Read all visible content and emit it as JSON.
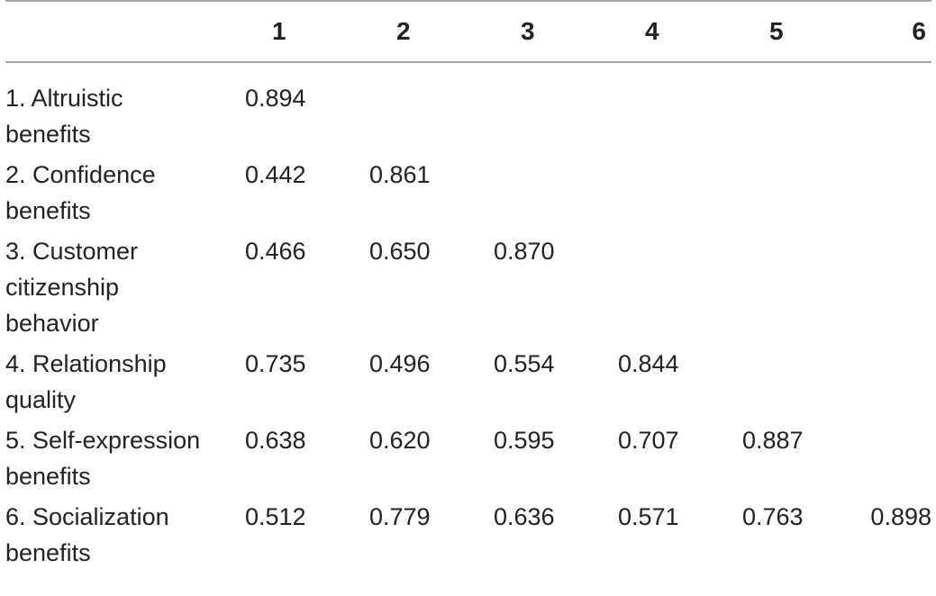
{
  "table": {
    "columns": [
      "",
      "1",
      "2",
      "3",
      "4",
      "5",
      "6"
    ],
    "rows": [
      {
        "label": "1. Altruistic benefits",
        "values": [
          "0.894",
          "",
          "",
          "",
          "",
          ""
        ]
      },
      {
        "label": "2. Confidence benefits",
        "values": [
          "0.442",
          "0.861",
          "",
          "",
          "",
          ""
        ]
      },
      {
        "label": "3. Customer citizenship behavior",
        "values": [
          "0.466",
          "0.650",
          "0.870",
          "",
          "",
          ""
        ]
      },
      {
        "label": "4. Relationship quality",
        "values": [
          "0.735",
          "0.496",
          "0.554",
          "0.844",
          "",
          ""
        ]
      },
      {
        "label": "5. Self-expression benefits",
        "values": [
          "0.638",
          "0.620",
          "0.595",
          "0.707",
          "0.887",
          ""
        ]
      },
      {
        "label": "6. Socialization benefits",
        "values": [
          "0.512",
          "0.779",
          "0.636",
          "0.571",
          "0.763",
          "0.898"
        ]
      }
    ]
  }
}
